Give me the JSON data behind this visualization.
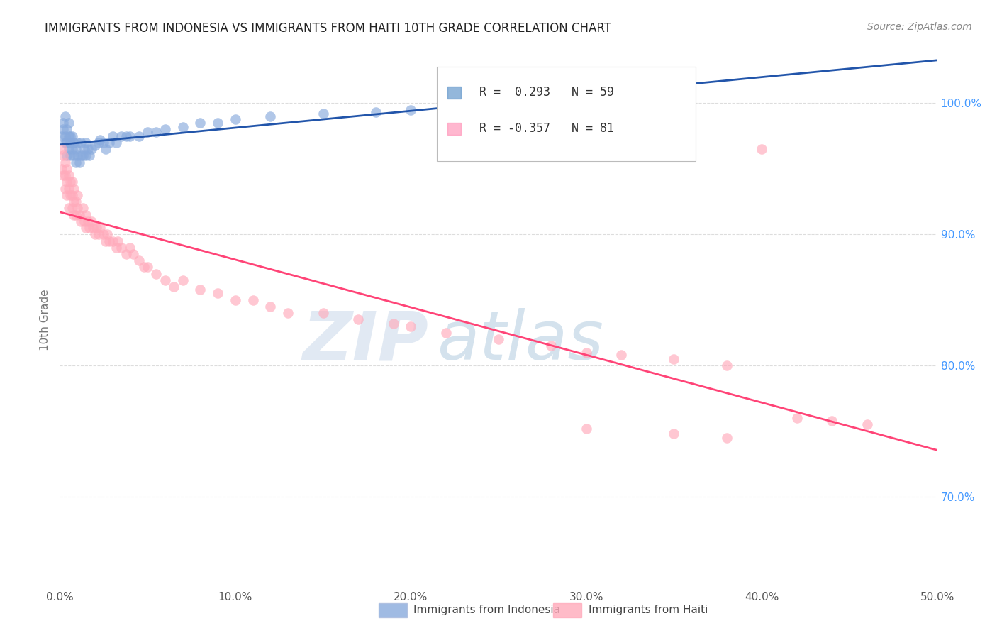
{
  "title": "IMMIGRANTS FROM INDONESIA VS IMMIGRANTS FROM HAITI 10TH GRADE CORRELATION CHART",
  "source": "Source: ZipAtlas.com",
  "ylabel": "10th Grade",
  "xmin": 0.0,
  "xmax": 0.5,
  "ymin": 0.63,
  "ymax": 1.04,
  "legend_label1": "Immigrants from Indonesia",
  "legend_label2": "Immigrants from Haiti",
  "legend_r1_color": "#6699CC",
  "legend_r2_color": "#FF99BB",
  "legend_r1_text": "R =  0.293   N = 59",
  "legend_r2_text": "R = -0.357   N = 81",
  "color_indonesia": "#88AADD",
  "color_haiti": "#FFAABB",
  "trend_color_indonesia": "#2255AA",
  "trend_color_haiti": "#FF4477",
  "indonesia_x": [
    0.001,
    0.002,
    0.002,
    0.003,
    0.003,
    0.003,
    0.004,
    0.004,
    0.004,
    0.005,
    0.005,
    0.005,
    0.006,
    0.006,
    0.006,
    0.007,
    0.007,
    0.008,
    0.008,
    0.009,
    0.009,
    0.01,
    0.01,
    0.011,
    0.012,
    0.012,
    0.013,
    0.014,
    0.015,
    0.015,
    0.016,
    0.017,
    0.018,
    0.02,
    0.022,
    0.023,
    0.025,
    0.026,
    0.028,
    0.03,
    0.032,
    0.035,
    0.038,
    0.04,
    0.045,
    0.05,
    0.055,
    0.06,
    0.07,
    0.08,
    0.09,
    0.1,
    0.12,
    0.15,
    0.18,
    0.2,
    0.22,
    0.25,
    0.3
  ],
  "indonesia_y": [
    0.975,
    0.98,
    0.985,
    0.97,
    0.975,
    0.99,
    0.96,
    0.97,
    0.98,
    0.965,
    0.975,
    0.985,
    0.96,
    0.97,
    0.975,
    0.965,
    0.975,
    0.96,
    0.97,
    0.955,
    0.965,
    0.96,
    0.97,
    0.955,
    0.96,
    0.97,
    0.96,
    0.965,
    0.96,
    0.97,
    0.965,
    0.96,
    0.965,
    0.968,
    0.97,
    0.972,
    0.97,
    0.965,
    0.97,
    0.975,
    0.97,
    0.975,
    0.975,
    0.975,
    0.975,
    0.978,
    0.978,
    0.98,
    0.982,
    0.985,
    0.985,
    0.988,
    0.99,
    0.992,
    0.993,
    0.995,
    0.995,
    0.998,
    1.0
  ],
  "haiti_x": [
    0.001,
    0.001,
    0.002,
    0.002,
    0.003,
    0.003,
    0.003,
    0.004,
    0.004,
    0.004,
    0.005,
    0.005,
    0.005,
    0.006,
    0.006,
    0.007,
    0.007,
    0.007,
    0.008,
    0.008,
    0.008,
    0.009,
    0.009,
    0.01,
    0.01,
    0.011,
    0.012,
    0.013,
    0.014,
    0.015,
    0.015,
    0.016,
    0.017,
    0.018,
    0.019,
    0.02,
    0.021,
    0.022,
    0.023,
    0.025,
    0.026,
    0.027,
    0.028,
    0.03,
    0.032,
    0.033,
    0.035,
    0.038,
    0.04,
    0.042,
    0.045,
    0.048,
    0.05,
    0.055,
    0.06,
    0.065,
    0.07,
    0.08,
    0.09,
    0.1,
    0.11,
    0.12,
    0.13,
    0.15,
    0.17,
    0.19,
    0.2,
    0.22,
    0.25,
    0.28,
    0.3,
    0.32,
    0.35,
    0.38,
    0.4,
    0.42,
    0.44,
    0.46,
    0.3,
    0.35,
    0.38
  ],
  "haiti_y": [
    0.965,
    0.95,
    0.96,
    0.945,
    0.955,
    0.945,
    0.935,
    0.95,
    0.94,
    0.93,
    0.945,
    0.935,
    0.92,
    0.94,
    0.93,
    0.94,
    0.93,
    0.92,
    0.935,
    0.925,
    0.915,
    0.925,
    0.915,
    0.93,
    0.92,
    0.915,
    0.91,
    0.92,
    0.91,
    0.915,
    0.905,
    0.91,
    0.905,
    0.91,
    0.905,
    0.9,
    0.905,
    0.9,
    0.905,
    0.9,
    0.895,
    0.9,
    0.895,
    0.895,
    0.89,
    0.895,
    0.89,
    0.885,
    0.89,
    0.885,
    0.88,
    0.875,
    0.875,
    0.87,
    0.865,
    0.86,
    0.865,
    0.858,
    0.855,
    0.85,
    0.85,
    0.845,
    0.84,
    0.84,
    0.835,
    0.832,
    0.83,
    0.825,
    0.82,
    0.815,
    0.81,
    0.808,
    0.805,
    0.8,
    0.965,
    0.76,
    0.758,
    0.755,
    0.752,
    0.748,
    0.745
  ],
  "yticks": [
    0.7,
    0.8,
    0.9,
    1.0
  ],
  "ytick_labels_right": [
    "70.0%",
    "80.0%",
    "90.0%",
    "100.0%"
  ],
  "xticks": [
    0.0,
    0.1,
    0.2,
    0.3,
    0.4,
    0.5
  ],
  "xtick_labels": [
    "0.0%",
    "10.0%",
    "20.0%",
    "30.0%",
    "40.0%",
    "50.0%"
  ],
  "watermark_zip": "ZIP",
  "watermark_atlas": "atlas",
  "background_color": "#FFFFFF",
  "grid_color": "#DDDDDD",
  "title_fontsize": 12,
  "source_fontsize": 10,
  "tick_fontsize": 11,
  "ylabel_fontsize": 11
}
